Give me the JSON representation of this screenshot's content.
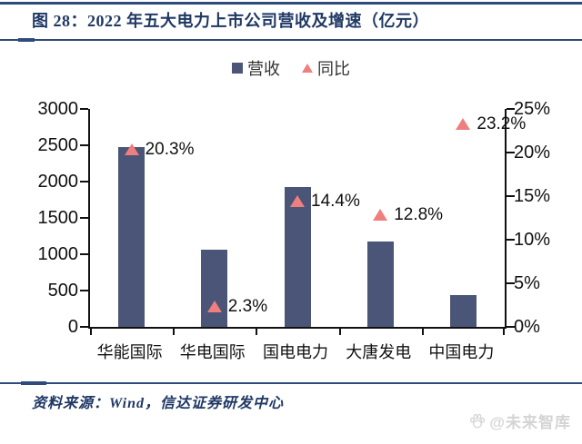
{
  "title": "图 28：2022 年五大电力上市公司营收及增速（亿元）",
  "legend": {
    "revenue_label": "营收",
    "yoy_label": "同比"
  },
  "source_text": "资料来源：Wind，信达证券研发中心",
  "watermark_text": "@未来智库",
  "colors": {
    "title_navy": "#1F3864",
    "rule_navy": "#2E4B7C",
    "bar_fill": "#4A5577",
    "marker_fill": "#EF7E7E",
    "axis_black": "#111111",
    "watermark_gray": "#D4D4D4"
  },
  "chart_data": {
    "type": "bar",
    "title": "2022 年五大电力上市公司营收及增速（亿元）",
    "categories": [
      "华能国际",
      "华电国际",
      "国电电力",
      "大唐发电",
      "中国电力"
    ],
    "series": [
      {
        "name": "营收",
        "type": "bar",
        "axis": "left",
        "unit": "亿元",
        "values": [
          2470,
          1060,
          1920,
          1170,
          440
        ]
      },
      {
        "name": "同比",
        "type": "scatter",
        "marker": "triangle",
        "axis": "right",
        "unit": "%",
        "values": [
          20.3,
          2.3,
          14.4,
          12.8,
          23.2
        ],
        "labels": [
          "20.3%",
          "2.3%",
          "14.4%",
          "12.8%",
          "23.2%"
        ]
      }
    ],
    "left_axis": {
      "min": 0,
      "max": 3000,
      "ticks": [
        0,
        500,
        1000,
        1500,
        2000,
        2500,
        3000
      ]
    },
    "right_axis": {
      "min": 0,
      "max": 25,
      "ticks": [
        0,
        5,
        10,
        15,
        20,
        25
      ],
      "tick_suffix": "%"
    },
    "grid": false,
    "legend_position": "top",
    "xlabel": "",
    "ylabel": ""
  }
}
